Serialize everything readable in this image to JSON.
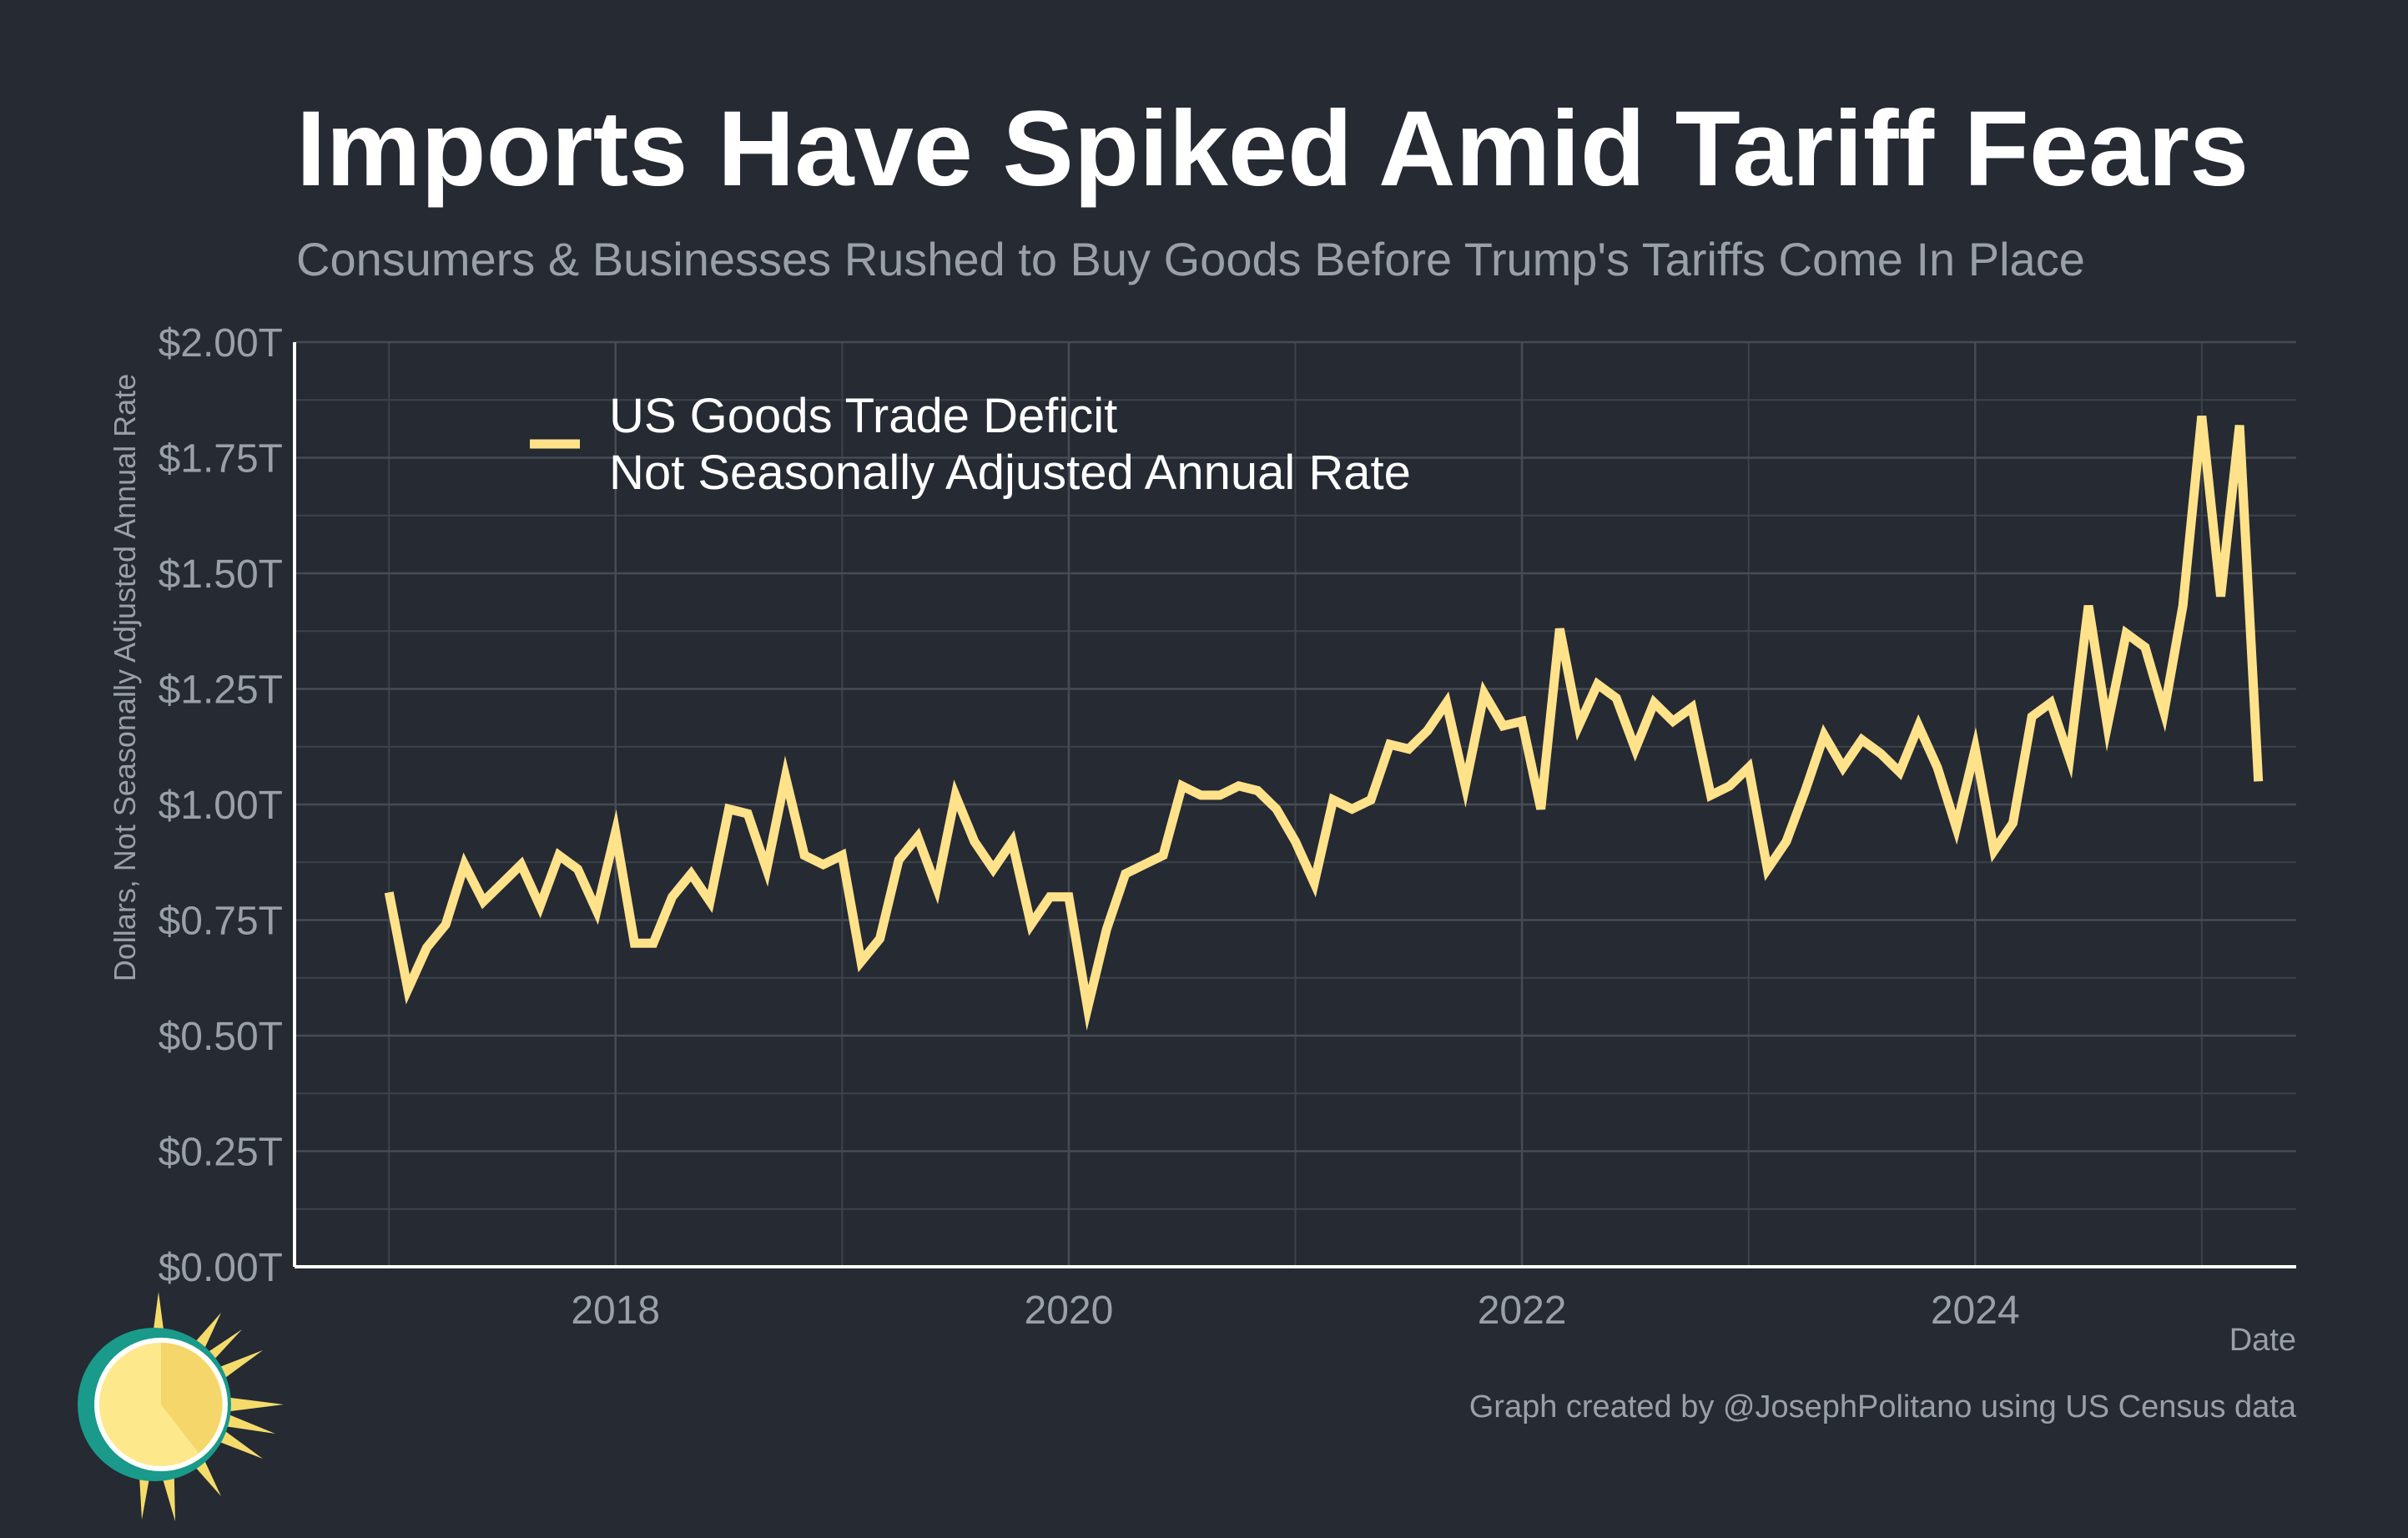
{
  "title": "Imports Have Spiked Amid Tariff Fears",
  "subtitle": "Consumers & Businesses Rushed to Buy Goods Before Trump's Tariffs Come In Place",
  "caption": "Graph created by @JosephPolitano using US Census data",
  "colors": {
    "background": "#252a33",
    "line": "#ffe28a",
    "grid": "#3d424b",
    "axis": "#ffffff",
    "muted_text": "#9aa0a8"
  },
  "logo": {
    "icon": "sun-icon"
  },
  "chart_data": {
    "type": "line",
    "xlabel": "Date",
    "ylabel": "Dollars, Not Seasonally Adjusted Annual Rate",
    "ylim": [
      0,
      2
    ],
    "xlim": [
      "2016-08",
      "2025-06"
    ],
    "y_ticks": [
      0,
      0.25,
      0.5,
      0.75,
      1.0,
      1.25,
      1.5,
      1.75,
      2.0
    ],
    "y_tick_labels": [
      "$0.00T",
      "$0.25T",
      "$0.50T",
      "$0.75T",
      "$1.00T",
      "$1.25T",
      "$1.50T",
      "$1.75T",
      "$2.00T"
    ],
    "x_ticks": [
      "2018-01",
      "2020-01",
      "2022-01",
      "2024-01"
    ],
    "x_tick_labels": [
      "2018",
      "2020",
      "2022",
      "2024"
    ],
    "grid": true,
    "legend_position": "top-left",
    "series": [
      {
        "name": "US Goods Trade Deficit\nNot Seasonally Adjusted Annual Rate",
        "start": "2017-01",
        "frequency": "monthly",
        "values": [
          0.81,
          0.6,
          0.69,
          0.74,
          0.87,
          0.79,
          0.83,
          0.87,
          0.78,
          0.89,
          0.86,
          0.77,
          0.94,
          0.7,
          0.7,
          0.8,
          0.85,
          0.79,
          0.99,
          0.98,
          0.86,
          1.06,
          0.89,
          0.87,
          0.89,
          0.66,
          0.71,
          0.88,
          0.93,
          0.82,
          1.02,
          0.92,
          0.86,
          0.92,
          0.74,
          0.8,
          0.8,
          0.56,
          0.73,
          0.85,
          0.87,
          0.89,
          1.04,
          1.02,
          1.02,
          1.04,
          1.03,
          0.99,
          0.92,
          0.83,
          1.01,
          0.99,
          1.01,
          1.13,
          1.12,
          1.16,
          1.22,
          1.04,
          1.24,
          1.17,
          1.18,
          0.99,
          1.38,
          1.17,
          1.26,
          1.23,
          1.12,
          1.22,
          1.18,
          1.21,
          1.02,
          1.04,
          1.08,
          0.86,
          0.92,
          1.03,
          1.15,
          1.08,
          1.14,
          1.11,
          1.07,
          1.17,
          1.08,
          0.95,
          1.12,
          0.9,
          0.96,
          1.19,
          1.22,
          1.1,
          1.43,
          1.17,
          1.37,
          1.34,
          1.2,
          1.43,
          1.84,
          1.45,
          1.82,
          1.05
        ]
      }
    ]
  }
}
